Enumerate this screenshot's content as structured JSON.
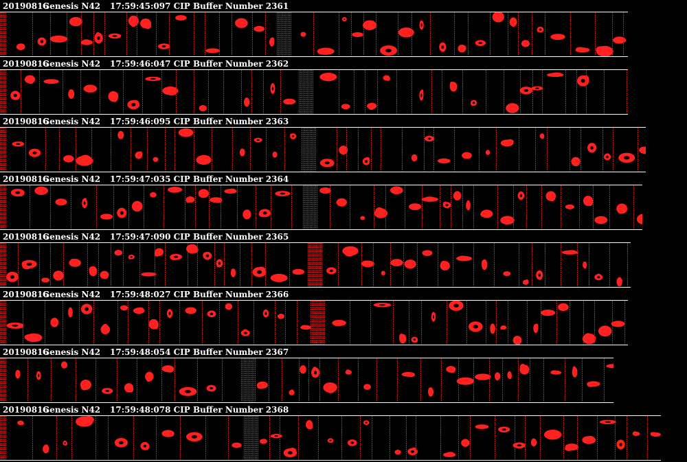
{
  "strips": [
    {
      "date": "20190816",
      "probe": "Genesis N42",
      "timestamp": "17:59:45:097",
      "buffer_label": "CIP Buffer Number",
      "buffer_number": "2361"
    },
    {
      "date": "20190816",
      "probe": "Genesis N42",
      "timestamp": "17:59:46:047",
      "buffer_label": "CIP Buffer Number",
      "buffer_number": "2362"
    },
    {
      "date": "20190816",
      "probe": "Genesis N42",
      "timestamp": "17:59:46:095",
      "buffer_label": "CIP Buffer Number",
      "buffer_number": "2363"
    },
    {
      "date": "20190816",
      "probe": "Genesis N42",
      "timestamp": "17:59:47:035",
      "buffer_label": "CIP Buffer Number",
      "buffer_number": "2364"
    },
    {
      "date": "20190816",
      "probe": "Genesis N42",
      "timestamp": "17:59:47:090",
      "buffer_label": "CIP Buffer Number",
      "buffer_number": "2365"
    },
    {
      "date": "20190816",
      "probe": "Genesis N42",
      "timestamp": "17:59:48:027",
      "buffer_label": "CIP Buffer Number",
      "buffer_number": "2366"
    },
    {
      "date": "20190816",
      "probe": "Genesis N42",
      "timestamp": "17:59:48:054",
      "buffer_label": "CIP Buffer Number",
      "buffer_number": "2367"
    },
    {
      "date": "20190816",
      "probe": "Genesis N42",
      "timestamp": "17:59:48:078",
      "buffer_label": "CIP Buffer Number",
      "buffer_number": "2368"
    }
  ],
  "colors": {
    "background": "#000000",
    "header_text": "#ffffff",
    "particle": "#ff2020",
    "separator": "#cc1a1a",
    "rule": "#ffffff"
  }
}
